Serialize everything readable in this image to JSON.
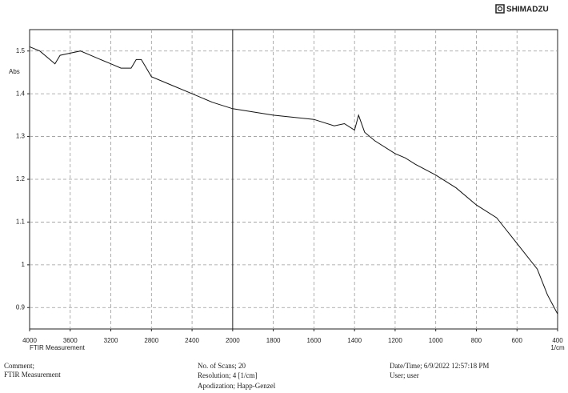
{
  "brand": "SHIMADZU",
  "chart_data": {
    "type": "line",
    "ylabel": "Abs",
    "xlabel": "FTIR Measurement",
    "xunit": "1/cm",
    "xlim": [
      4000,
      400
    ],
    "xbreak": 2000,
    "xticks": [
      4000,
      3600,
      3200,
      2800,
      2400,
      2000,
      1800,
      1600,
      1400,
      1200,
      1000,
      800,
      600,
      400
    ],
    "ylim": [
      0.85,
      1.55
    ],
    "yticks": [
      0.9,
      1,
      1.1,
      1.2,
      1.3,
      1.4,
      1.5
    ],
    "grid": true,
    "series": [
      {
        "color": "#111111",
        "x": [
          4000,
          3900,
          3800,
          3750,
          3700,
          3600,
          3500,
          3400,
          3300,
          3200,
          3100,
          3000,
          2950,
          2900,
          2850,
          2800,
          2600,
          2400,
          2200,
          2000,
          1800,
          1600,
          1500,
          1450,
          1400,
          1380,
          1350,
          1300,
          1200,
          1150,
          1100,
          1000,
          900,
          800,
          700,
          600,
          500,
          450,
          400
        ],
        "values": [
          1.51,
          1.5,
          1.48,
          1.47,
          1.49,
          1.495,
          1.5,
          1.49,
          1.48,
          1.47,
          1.46,
          1.46,
          1.48,
          1.48,
          1.46,
          1.44,
          1.42,
          1.4,
          1.38,
          1.365,
          1.35,
          1.34,
          1.325,
          1.33,
          1.315,
          1.35,
          1.31,
          1.29,
          1.26,
          1.25,
          1.235,
          1.21,
          1.18,
          1.14,
          1.11,
          1.05,
          0.99,
          0.93,
          0.885
        ]
      }
    ]
  },
  "footer": {
    "comment_label": "Comment;",
    "comment": "FTIR Measurement",
    "scans": "No. of Scans; 20",
    "resolution": "Resolution;   4 [1/cm]",
    "apodization": "Apodization;   Happ-Genzel",
    "datetime": "Date/Time; 6/9/2022 12:57:18 PM",
    "user": "User;          user"
  }
}
